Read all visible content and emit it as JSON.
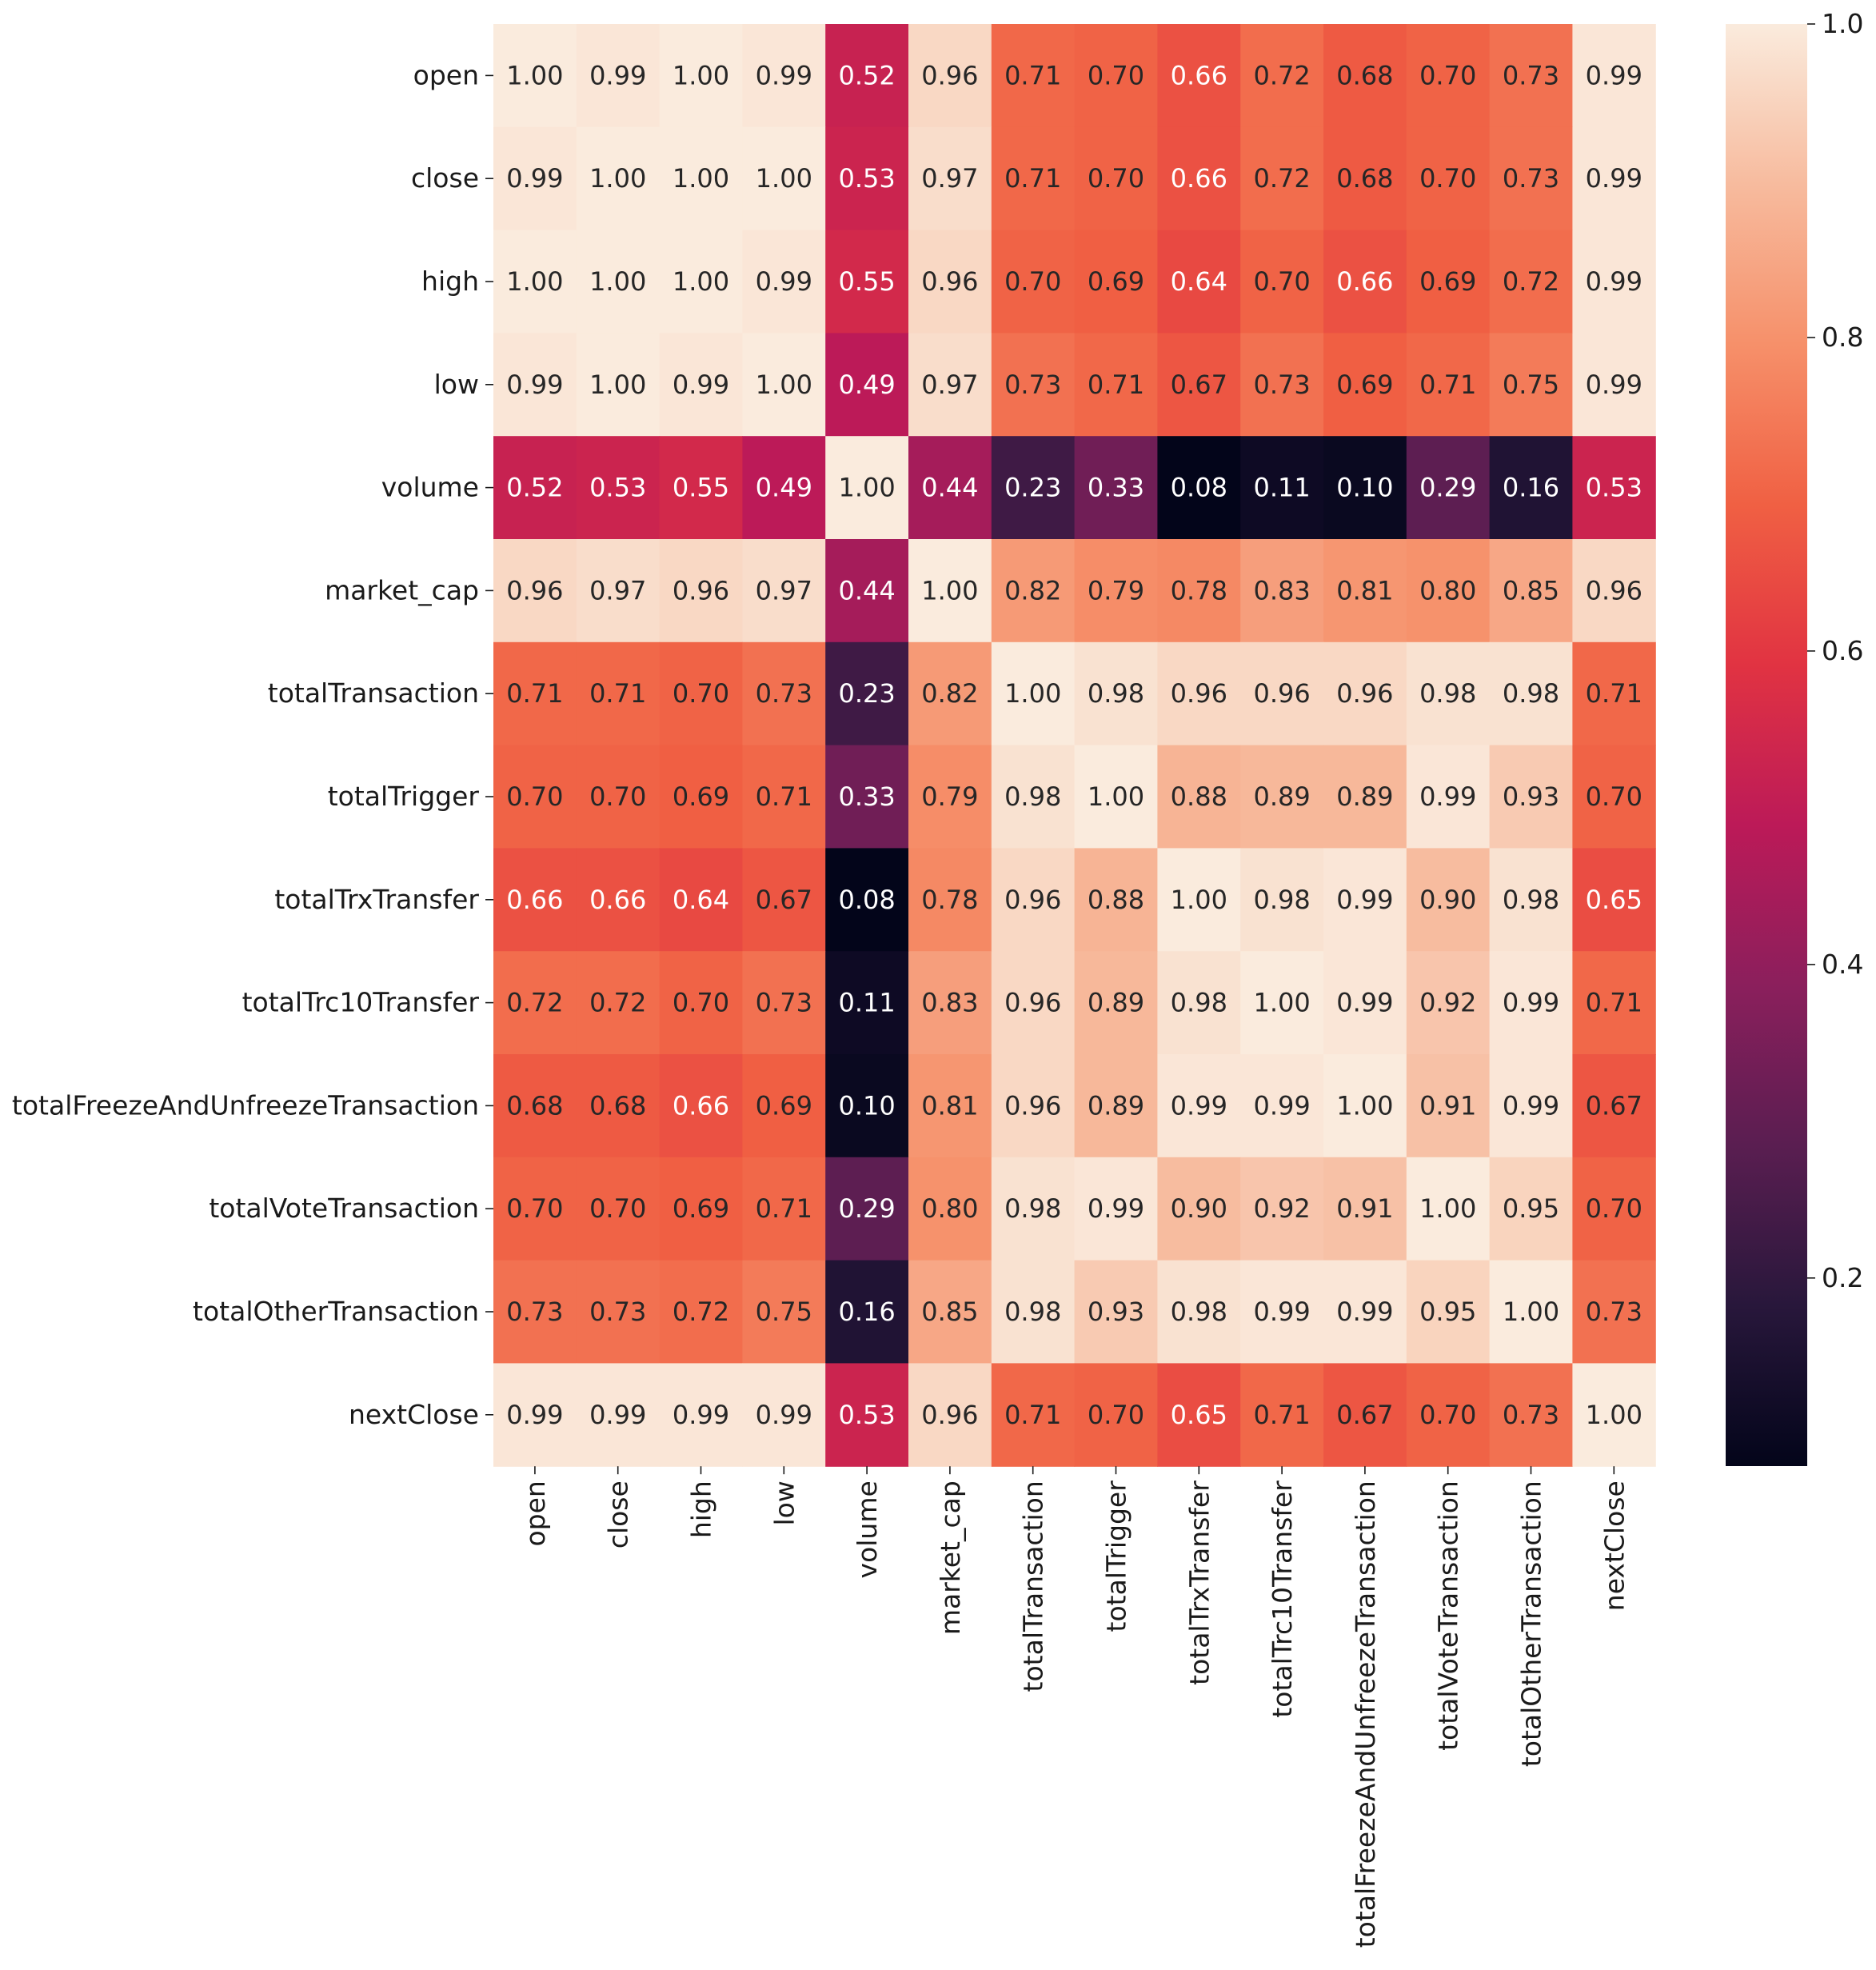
{
  "chart_data": {
    "type": "heatmap",
    "title": "",
    "xlabel": "",
    "ylabel": "",
    "labels": [
      "open",
      "close",
      "high",
      "low",
      "volume",
      "market_cap",
      "totalTransaction",
      "totalTrigger",
      "totalTrxTransfer",
      "totalTrc10Transfer",
      "totalFreezeAndUnfreezeTransaction",
      "totalVoteTransaction",
      "totalOtherTransaction",
      "nextClose"
    ],
    "values": [
      [
        1.0,
        0.99,
        1.0,
        0.99,
        0.52,
        0.96,
        0.71,
        0.7,
        0.66,
        0.72,
        0.68,
        0.7,
        0.73,
        0.99
      ],
      [
        0.99,
        1.0,
        1.0,
        1.0,
        0.53,
        0.97,
        0.71,
        0.7,
        0.66,
        0.72,
        0.68,
        0.7,
        0.73,
        0.99
      ],
      [
        1.0,
        1.0,
        1.0,
        0.99,
        0.55,
        0.96,
        0.7,
        0.69,
        0.64,
        0.7,
        0.66,
        0.69,
        0.72,
        0.99
      ],
      [
        0.99,
        1.0,
        0.99,
        1.0,
        0.49,
        0.97,
        0.73,
        0.71,
        0.67,
        0.73,
        0.69,
        0.71,
        0.75,
        0.99
      ],
      [
        0.52,
        0.53,
        0.55,
        0.49,
        1.0,
        0.44,
        0.23,
        0.33,
        0.08,
        0.11,
        0.1,
        0.29,
        0.16,
        0.53
      ],
      [
        0.96,
        0.97,
        0.96,
        0.97,
        0.44,
        1.0,
        0.82,
        0.79,
        0.78,
        0.83,
        0.81,
        0.8,
        0.85,
        0.96
      ],
      [
        0.71,
        0.71,
        0.7,
        0.73,
        0.23,
        0.82,
        1.0,
        0.98,
        0.96,
        0.96,
        0.96,
        0.98,
        0.98,
        0.71
      ],
      [
        0.7,
        0.7,
        0.69,
        0.71,
        0.33,
        0.79,
        0.98,
        1.0,
        0.88,
        0.89,
        0.89,
        0.99,
        0.93,
        0.7
      ],
      [
        0.66,
        0.66,
        0.64,
        0.67,
        0.08,
        0.78,
        0.96,
        0.88,
        1.0,
        0.98,
        0.99,
        0.9,
        0.98,
        0.65
      ],
      [
        0.72,
        0.72,
        0.7,
        0.73,
        0.11,
        0.83,
        0.96,
        0.89,
        0.98,
        1.0,
        0.99,
        0.92,
        0.99,
        0.71
      ],
      [
        0.68,
        0.68,
        0.66,
        0.69,
        0.1,
        0.81,
        0.96,
        0.89,
        0.99,
        0.99,
        1.0,
        0.91,
        0.99,
        0.67
      ],
      [
        0.7,
        0.7,
        0.69,
        0.71,
        0.29,
        0.8,
        0.98,
        0.99,
        0.9,
        0.92,
        0.91,
        1.0,
        0.95,
        0.7
      ],
      [
        0.73,
        0.73,
        0.72,
        0.75,
        0.16,
        0.85,
        0.98,
        0.93,
        0.98,
        0.99,
        0.99,
        0.95,
        1.0,
        0.73
      ],
      [
        0.99,
        0.99,
        0.99,
        0.99,
        0.53,
        0.96,
        0.71,
        0.7,
        0.65,
        0.71,
        0.67,
        0.7,
        0.73,
        1.0
      ]
    ],
    "value_format": "2 decimals",
    "colorbar": {
      "range": [
        0.08,
        1.0
      ],
      "ticks": [
        "0.2",
        "0.4",
        "0.6",
        "0.8",
        "1.0"
      ],
      "colormap": "rocket",
      "colors": [
        "#03051a",
        "#28173b",
        "#5a1e51",
        "#8b1f5c",
        "#bc1a58",
        "#e13342",
        "#f06043",
        "#f6906a",
        "#f7bb9e",
        "#faebdd"
      ]
    }
  }
}
